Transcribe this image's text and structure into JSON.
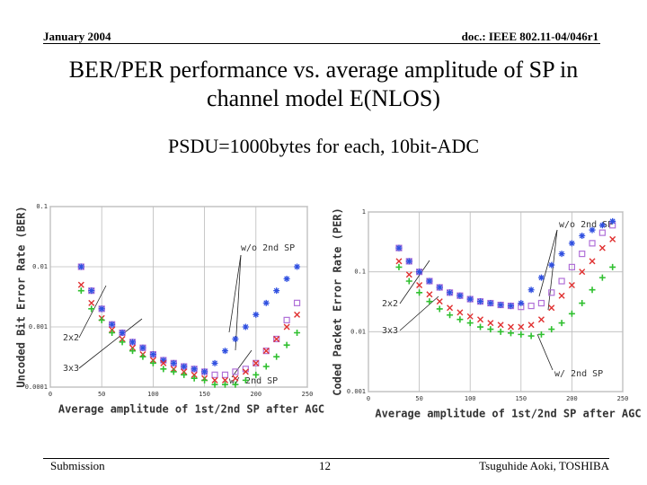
{
  "header": {
    "date": "January 2004",
    "doc": "doc.: IEEE 802.11-04/046r1"
  },
  "title": "BER/PER performance vs. average amplitude of SP in channel model E(NLOS)",
  "subtitle": "PSDU=1000bytes for each, 10bit-ADC",
  "chart_data": [
    {
      "type": "scatter",
      "xlabel": "Average amplitude of 1st/2nd SP after AGC",
      "ylabel": "Uncoded Bit Error Rate (BER)",
      "xlim": [
        0,
        250
      ],
      "xticks": [
        0,
        50,
        100,
        150,
        200,
        250
      ],
      "ylim": [
        0.0001,
        0.1
      ],
      "yticks": [
        0.1,
        0.01,
        0.001,
        0.0001
      ],
      "ylog": true,
      "grid": true,
      "annotations": [
        "w/o 2nd SP",
        "2x2",
        "3x3",
        "w/ 2nd SP"
      ],
      "x": [
        30,
        40,
        50,
        60,
        70,
        80,
        90,
        100,
        110,
        120,
        130,
        140,
        150,
        160,
        170,
        180,
        190,
        200,
        210,
        220,
        230,
        240
      ],
      "series": [
        {
          "color": "#b070d8",
          "marker": "square",
          "values": [
            0.01,
            0.004,
            0.002,
            0.0011,
            0.0008,
            0.00056,
            0.00045,
            0.00035,
            0.00028,
            0.00025,
            0.00022,
            0.0002,
            0.00018,
            0.00016,
            0.00016,
            0.00018,
            0.0002,
            0.00025,
            0.0004,
            0.00063,
            0.0013,
            0.0025
          ]
        },
        {
          "color": "#3050e0",
          "marker": "asterisk",
          "values": [
            0.01,
            0.004,
            0.002,
            0.0011,
            0.0008,
            0.00056,
            0.00045,
            0.00035,
            0.00028,
            0.00025,
            0.00022,
            0.0002,
            0.00018,
            0.00025,
            0.0004,
            0.00063,
            0.001,
            0.0016,
            0.0025,
            0.004,
            0.0063,
            0.01
          ]
        },
        {
          "color": "#e03030",
          "marker": "x",
          "values": [
            0.005,
            0.0025,
            0.0014,
            0.0009,
            0.00063,
            0.00045,
            0.00035,
            0.00028,
            0.00025,
            0.0002,
            0.00018,
            0.00016,
            0.00014,
            0.00013,
            0.00013,
            0.00014,
            0.00018,
            0.00025,
            0.0004,
            0.00063,
            0.001,
            0.0016
          ]
        },
        {
          "color": "#30c030",
          "marker": "plus",
          "values": [
            0.004,
            0.002,
            0.0013,
            0.0008,
            0.00056,
            0.0004,
            0.00032,
            0.00025,
            0.0002,
            0.00018,
            0.00016,
            0.00014,
            0.00013,
            0.00011,
            0.00011,
            0.00011,
            0.00013,
            0.00016,
            0.00022,
            0.00032,
            0.0005,
            0.0008
          ]
        }
      ]
    },
    {
      "type": "scatter",
      "xlabel": "Average amplitude of 1st/2nd SP after AGC",
      "ylabel": "Coded Packet Error Rate (PER)",
      "xlim": [
        0,
        250
      ],
      "xticks": [
        0,
        50,
        100,
        150,
        200,
        250
      ],
      "ylim": [
        0.001,
        1
      ],
      "yticks": [
        1,
        0.1,
        0.01,
        0.001
      ],
      "ylog": true,
      "grid": true,
      "annotations": [
        "w/o 2nd SP",
        "2x2",
        "3x3",
        "w/ 2nd SP"
      ],
      "x": [
        30,
        40,
        50,
        60,
        70,
        80,
        90,
        100,
        110,
        120,
        130,
        140,
        150,
        160,
        170,
        180,
        190,
        200,
        210,
        220,
        230,
        240
      ],
      "series": [
        {
          "color": "#b070d8",
          "marker": "square",
          "values": [
            0.25,
            0.15,
            0.1,
            0.07,
            0.055,
            0.045,
            0.04,
            0.035,
            0.032,
            0.03,
            0.028,
            0.027,
            0.026,
            0.027,
            0.03,
            0.045,
            0.07,
            0.12,
            0.2,
            0.3,
            0.45,
            0.6
          ]
        },
        {
          "color": "#3050e0",
          "marker": "asterisk",
          "values": [
            0.25,
            0.15,
            0.1,
            0.07,
            0.055,
            0.045,
            0.04,
            0.035,
            0.032,
            0.03,
            0.028,
            0.027,
            0.03,
            0.05,
            0.08,
            0.13,
            0.2,
            0.3,
            0.4,
            0.5,
            0.6,
            0.7
          ]
        },
        {
          "color": "#e03030",
          "marker": "x",
          "values": [
            0.15,
            0.09,
            0.06,
            0.042,
            0.032,
            0.025,
            0.021,
            0.018,
            0.016,
            0.014,
            0.013,
            0.012,
            0.012,
            0.013,
            0.016,
            0.025,
            0.04,
            0.06,
            0.1,
            0.15,
            0.25,
            0.35
          ]
        },
        {
          "color": "#30c030",
          "marker": "plus",
          "values": [
            0.12,
            0.07,
            0.045,
            0.032,
            0.024,
            0.019,
            0.016,
            0.014,
            0.012,
            0.011,
            0.01,
            0.0095,
            0.009,
            0.0085,
            0.009,
            0.011,
            0.014,
            0.02,
            0.03,
            0.05,
            0.08,
            0.12
          ]
        }
      ]
    }
  ],
  "footer": {
    "left": "Submission",
    "page": "12",
    "right": "Tsuguhide Aoki, TOSHIBA"
  }
}
